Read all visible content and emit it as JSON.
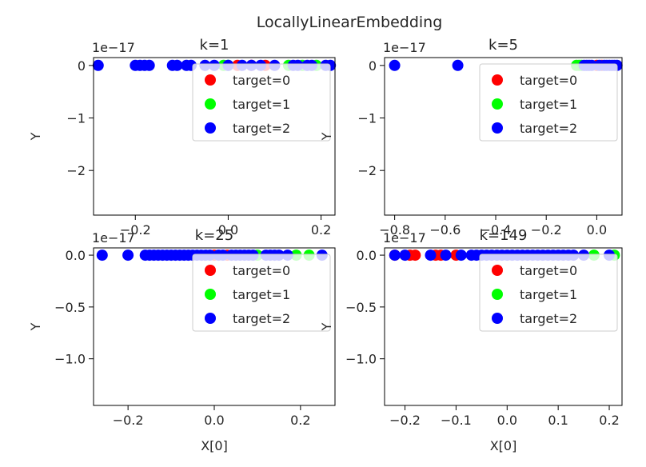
{
  "suptitle": "LocallyLinearEmbedding",
  "legend_labels": [
    "target=0",
    "target=1",
    "target=2"
  ],
  "colors": {
    "target0": "#ff0000",
    "target1": "#00ff00",
    "target2": "#0000ff"
  },
  "chart_data": [
    {
      "type": "scatter",
      "title": "k=1",
      "xlabel": "",
      "ylabel": "Y",
      "offset_text": "1e−17",
      "xlim": [
        -0.29,
        0.23
      ],
      "ylim": [
        -2.85,
        0.15
      ],
      "xticks": [
        -0.2,
        0.0,
        0.2
      ],
      "xticklabels": [
        "−0.2",
        "0.0",
        "0.2"
      ],
      "yticks": [
        0,
        -1,
        -2
      ],
      "yticklabels": [
        "0",
        "−1",
        "−2"
      ],
      "legend": "upper right",
      "series": [
        {
          "name": "target=0",
          "color": "#ff0000",
          "x": [
            0.02,
            0.05,
            0.08
          ],
          "y": [
            0,
            0,
            0
          ]
        },
        {
          "name": "target=1",
          "color": "#00ff00",
          "x": [
            -0.01,
            0.0,
            0.13,
            0.16,
            0.19
          ],
          "y": [
            0,
            0,
            0,
            0,
            0
          ]
        },
        {
          "name": "target=2",
          "color": "#0000ff",
          "x": [
            -0.28,
            -0.2,
            -0.19,
            -0.18,
            -0.17,
            -0.12,
            -0.11,
            -0.09,
            -0.08,
            -0.05,
            -0.03,
            0.0,
            0.03,
            0.05,
            0.07,
            0.1,
            0.14,
            0.15,
            0.17,
            0.18,
            0.21,
            0.22
          ],
          "y": [
            0,
            0,
            0,
            0,
            0,
            0,
            0,
            0,
            0,
            0,
            0,
            0,
            0,
            0,
            0,
            0,
            0,
            0,
            0,
            0,
            0,
            0
          ]
        }
      ]
    },
    {
      "type": "scatter",
      "title": "k=5",
      "xlabel": "",
      "ylabel": "Y",
      "offset_text": "1e−17",
      "xlim": [
        -0.84,
        0.1
      ],
      "ylim": [
        -2.85,
        0.15
      ],
      "xticks": [
        -0.8,
        -0.6,
        -0.4,
        -0.2,
        0.0
      ],
      "xticklabels": [
        "−0.8",
        "−0.6",
        "−0.4",
        "−0.2",
        "0.0"
      ],
      "yticks": [
        0,
        -1,
        -2
      ],
      "yticklabels": [
        "0",
        "−1",
        "−2"
      ],
      "legend": "upper right",
      "series": [
        {
          "name": "target=0",
          "color": "#ff0000",
          "x": [
            0.0,
            0.02
          ],
          "y": [
            0,
            0
          ]
        },
        {
          "name": "target=1",
          "color": "#00ff00",
          "x": [
            -0.08,
            -0.07,
            -0.06
          ],
          "y": [
            0,
            0,
            0
          ]
        },
        {
          "name": "target=2",
          "color": "#0000ff",
          "x": [
            -0.8,
            -0.55,
            -0.05,
            -0.04,
            -0.03,
            -0.02,
            0.01,
            0.03,
            0.04,
            0.05,
            0.06,
            0.07,
            0.08
          ],
          "y": [
            0,
            0,
            0,
            0,
            0,
            0,
            0,
            0,
            0,
            0,
            0,
            0,
            0
          ]
        }
      ]
    },
    {
      "type": "scatter",
      "title": "k=25",
      "xlabel": "X[0]",
      "ylabel": "Y",
      "offset_text": "1e−17",
      "xlim": [
        -0.28,
        0.28
      ],
      "ylim": [
        -1.45,
        0.07
      ],
      "xticks": [
        -0.2,
        0.0,
        0.2
      ],
      "xticklabels": [
        "−0.2",
        "0.0",
        "0.2"
      ],
      "yticks": [
        0.0,
        -0.5,
        -1.0
      ],
      "yticklabels": [
        "0.0",
        "−0.5",
        "−1.0"
      ],
      "legend": "upper right",
      "series": [
        {
          "name": "target=0",
          "color": "#ff0000",
          "x": [
            0.0,
            0.03
          ],
          "y": [
            0,
            0
          ]
        },
        {
          "name": "target=1",
          "color": "#00ff00",
          "x": [
            0.1,
            0.19,
            0.22
          ],
          "y": [
            0,
            0,
            0
          ]
        },
        {
          "name": "target=2",
          "color": "#0000ff",
          "x": [
            -0.26,
            -0.2,
            -0.16,
            -0.15,
            -0.14,
            -0.13,
            -0.12,
            -0.11,
            -0.1,
            -0.09,
            -0.08,
            -0.07,
            -0.06,
            -0.05,
            -0.04,
            -0.03,
            -0.02,
            -0.01,
            0.01,
            0.02,
            0.04,
            0.05,
            0.06,
            0.07,
            0.08,
            0.09,
            0.12,
            0.13,
            0.14,
            0.15,
            0.17,
            0.25
          ],
          "y": [
            0,
            0,
            0,
            0,
            0,
            0,
            0,
            0,
            0,
            0,
            0,
            0,
            0,
            0,
            0,
            0,
            0,
            0,
            0,
            0,
            0,
            0,
            0,
            0,
            0,
            0,
            0,
            0,
            0,
            0,
            0,
            0
          ]
        }
      ]
    },
    {
      "type": "scatter",
      "title": "k=149",
      "xlabel": "X[0]",
      "ylabel": "Y",
      "offset_text": "1e−17",
      "xlim": [
        -0.24,
        0.225
      ],
      "ylim": [
        -1.45,
        0.07
      ],
      "xticks": [
        -0.2,
        -0.1,
        0.0,
        0.1,
        0.2
      ],
      "xticklabels": [
        "−0.2",
        "−0.1",
        "0.0",
        "0.1",
        "0.2"
      ],
      "yticks": [
        0.0,
        -0.5,
        -1.0
      ],
      "yticklabels": [
        "0.0",
        "−0.5",
        "−1.0"
      ],
      "legend": "upper right",
      "series": [
        {
          "name": "target=0",
          "color": "#ff0000",
          "x": [
            -0.22,
            -0.19,
            -0.18,
            -0.14,
            -0.13,
            -0.1
          ],
          "y": [
            0,
            0,
            0,
            0,
            0,
            0
          ]
        },
        {
          "name": "target=1",
          "color": "#00ff00",
          "x": [
            0.17,
            0.21
          ],
          "y": [
            0,
            0
          ]
        },
        {
          "name": "target=2",
          "color": "#0000ff",
          "x": [
            -0.22,
            -0.2,
            -0.15,
            -0.12,
            -0.09,
            -0.07,
            -0.06,
            -0.05,
            -0.04,
            -0.03,
            -0.02,
            -0.01,
            0.0,
            0.01,
            0.02,
            0.03,
            0.04,
            0.05,
            0.06,
            0.07,
            0.08,
            0.09,
            0.1,
            0.11,
            0.12,
            0.13,
            0.15,
            0.2
          ],
          "y": [
            0,
            0,
            0,
            0,
            0,
            0,
            0,
            0,
            0,
            0,
            0,
            0,
            0,
            0,
            0,
            0,
            0,
            0,
            0,
            0,
            0,
            0,
            0,
            0,
            0,
            0,
            0,
            0
          ]
        }
      ]
    }
  ]
}
